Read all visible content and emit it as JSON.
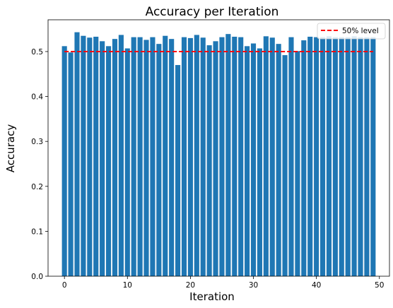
{
  "chart_data": {
    "type": "bar",
    "title": "Accuracy per Iteration",
    "xlabel": "Iteration",
    "ylabel": "Accuracy",
    "x": [
      0,
      1,
      2,
      3,
      4,
      5,
      6,
      7,
      8,
      9,
      10,
      11,
      12,
      13,
      14,
      15,
      16,
      17,
      18,
      19,
      20,
      21,
      22,
      23,
      24,
      25,
      26,
      27,
      28,
      29,
      30,
      31,
      32,
      33,
      34,
      35,
      36,
      37,
      38,
      39,
      40,
      41,
      42,
      43,
      44,
      45,
      46,
      47,
      48,
      49
    ],
    "values": [
      0.512,
      0.498,
      0.543,
      0.535,
      0.531,
      0.533,
      0.523,
      0.512,
      0.528,
      0.537,
      0.507,
      0.532,
      0.532,
      0.526,
      0.532,
      0.517,
      0.535,
      0.528,
      0.47,
      0.532,
      0.53,
      0.537,
      0.531,
      0.514,
      0.523,
      0.532,
      0.539,
      0.533,
      0.532,
      0.512,
      0.518,
      0.507,
      0.534,
      0.531,
      0.517,
      0.492,
      0.532,
      0.501,
      0.525,
      0.533,
      0.532,
      0.532,
      0.534,
      0.532,
      0.532,
      0.532,
      0.534,
      0.532,
      0.532,
      0.532
    ],
    "bar_color": "#1f77b4",
    "xlim": [
      -2.6,
      51.6
    ],
    "ylim": [
      0,
      0.5707
    ],
    "xticks": [
      "0",
      "10",
      "20",
      "30",
      "40",
      "50"
    ],
    "yticks": [
      "0.0",
      "0.1",
      "0.2",
      "0.3",
      "0.4",
      "0.5"
    ],
    "reference_line": {
      "label": "50% level",
      "y": 0.5,
      "color": "#ff0000",
      "style": "dashed",
      "x_start": 0,
      "x_end": 49
    },
    "legend_position": "top-right",
    "grid": false
  }
}
